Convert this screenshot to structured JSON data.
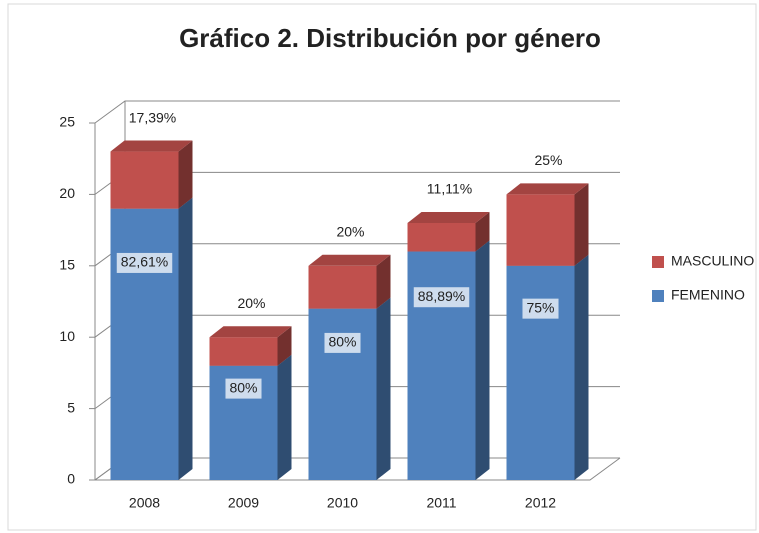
{
  "chart_data": {
    "type": "stacked_bar_3d",
    "title": "Gráfico 2. Distribución por género",
    "categories": [
      "2008",
      "2009",
      "2010",
      "2011",
      "2012"
    ],
    "series": [
      {
        "name": "FEMENINO",
        "color": "#4f81bd",
        "values": [
          19,
          8,
          12,
          16,
          15
        ],
        "labels": [
          "82,61%",
          "80%",
          "80%",
          "88,89%",
          "75%"
        ]
      },
      {
        "name": "MASCULINO",
        "color": "#c0504d",
        "values": [
          4,
          2,
          3,
          2,
          5
        ],
        "labels": [
          "17,39%",
          "20%",
          "20%",
          "11,11%",
          "25%"
        ]
      }
    ],
    "ylim": [
      0,
      25
    ],
    "yticks": [
      0,
      5,
      10,
      15,
      20,
      25
    ],
    "grid": true,
    "legend": "right"
  }
}
